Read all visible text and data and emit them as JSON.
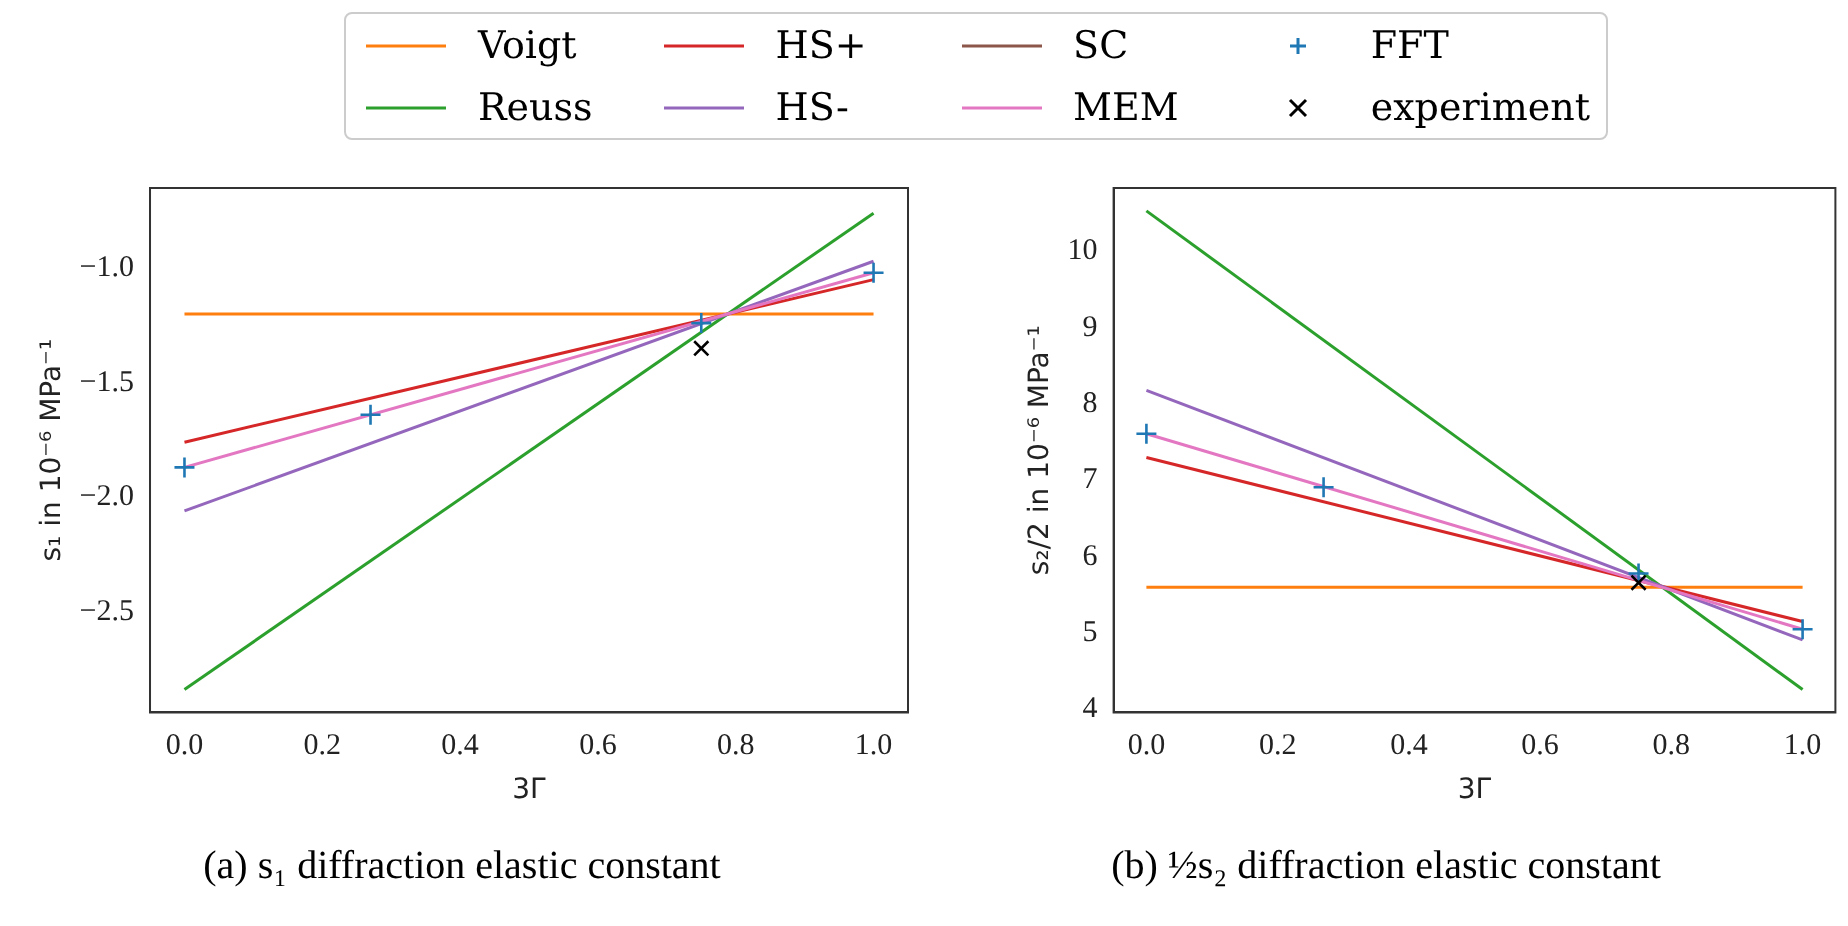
{
  "chart_data": [
    {
      "type": "line",
      "xlabel": "3Γ",
      "ylabel": "s₁ in 10⁻⁶ MPa⁻¹",
      "annotations": [
        "(a) s₁ diffraction elastic constant"
      ],
      "xlim": [
        -0.05,
        1.05
      ],
      "xticks": [
        {
          "value": 0,
          "label": "0.0"
        },
        {
          "value": 0.2,
          "label": "0.2"
        },
        {
          "value": 0.4,
          "label": "0.4"
        },
        {
          "value": 0.6,
          "label": "0.6"
        },
        {
          "value": 0.8,
          "label": "0.8"
        },
        {
          "value": 1,
          "label": "1.0"
        }
      ],
      "ylim": [
        -2.94,
        -0.65
      ],
      "yticks": [
        {
          "value": -2.5,
          "label": "−2.5"
        },
        {
          "value": -2,
          "label": "−2.0"
        },
        {
          "value": -1.5,
          "label": "−1.5"
        },
        {
          "value": -1,
          "label": "−1.0"
        }
      ],
      "grid": false,
      "legend": "top",
      "marker": "none",
      "line_style": "solid",
      "series": [
        {
          "name": "Voigt",
          "color": "#ff7f0e",
          "x": [
            0,
            1
          ],
          "values": [
            -1.2,
            -1.2
          ]
        },
        {
          "name": "Reuss",
          "color": "#2ca02c",
          "x": [
            0,
            1
          ],
          "values": [
            -2.84,
            -0.76
          ]
        },
        {
          "name": "HS+",
          "color": "#d62728",
          "x": [
            0,
            1
          ],
          "values": [
            -1.76,
            -1.05
          ]
        },
        {
          "name": "HS-",
          "color": "#9467bd",
          "x": [
            0,
            1
          ],
          "values": [
            -2.06,
            -0.97
          ]
        },
        {
          "name": "SC",
          "color": "#8c564b"
        },
        {
          "name": "MEM",
          "color": "#e377c2",
          "x": [
            0,
            1
          ],
          "values": [
            -1.87,
            -1.02
          ]
        },
        {
          "name": "FFT",
          "type": "scatter",
          "marker": "cross",
          "color": "#1f77b4",
          "x": [
            0,
            0.27,
            0.75,
            1
          ],
          "values": [
            -1.87,
            -1.64,
            -1.24,
            -1.02
          ]
        },
        {
          "name": "experiment",
          "type": "scatter",
          "marker": "x",
          "color": "#000000",
          "x": [
            0.75
          ],
          "values": [
            -1.35
          ]
        }
      ]
    },
    {
      "type": "line",
      "xlabel": "3Γ",
      "ylabel": "s₂/2 in 10⁻⁶ MPa⁻¹",
      "annotations": [
        "(b) ½s₂ diffraction elastic constant"
      ],
      "xlim": [
        -0.05,
        1.05
      ],
      "xticks": [
        {
          "value": 0,
          "label": "0.0"
        },
        {
          "value": 0.2,
          "label": "0.2"
        },
        {
          "value": 0.4,
          "label": "0.4"
        },
        {
          "value": 0.6,
          "label": "0.6"
        },
        {
          "value": 0.8,
          "label": "0.8"
        },
        {
          "value": 1,
          "label": "1.0"
        }
      ],
      "ylim": [
        3.96,
        10.83
      ],
      "yticks": [
        4,
        5,
        6,
        7,
        8,
        9,
        10
      ],
      "grid": false,
      "marker": "none",
      "line_style": "solid",
      "series": [
        {
          "color": "#ff7f0e",
          "x": [
            0,
            1
          ],
          "values": [
            5.6,
            5.6
          ]
        },
        {
          "color": "#2ca02c",
          "x": [
            0,
            1
          ],
          "values": [
            10.53,
            4.26
          ]
        },
        {
          "color": "#d62728",
          "x": [
            0,
            1
          ],
          "values": [
            7.3,
            5.15
          ]
        },
        {
          "color": "#9467bd",
          "x": [
            0,
            1
          ],
          "values": [
            8.18,
            4.91
          ]
        },
        {
          "color": "#e377c2",
          "x": [
            0,
            1
          ],
          "values": [
            7.61,
            5.05
          ]
        },
        {
          "type": "scatter",
          "marker": "cross",
          "color": "#1f77b4",
          "x": [
            0,
            0.27,
            0.75,
            1
          ],
          "values": [
            7.61,
            6.91,
            5.78,
            5.05
          ]
        },
        {
          "type": "scatter",
          "marker": "x",
          "color": "#000000",
          "x": [
            0.75
          ],
          "values": [
            5.66
          ]
        }
      ]
    }
  ]
}
